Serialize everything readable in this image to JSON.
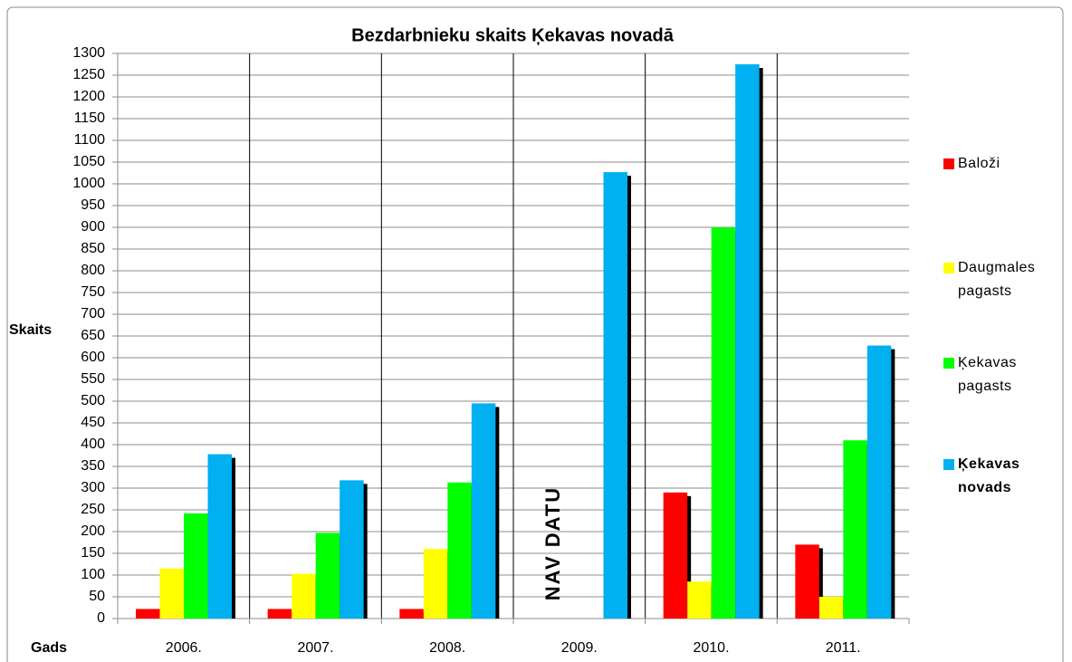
{
  "chart_data": {
    "type": "bar",
    "title": "Bezdarbnieku skaits Ķekavas novadā",
    "ylabel": "Skaits",
    "xlabel": "Gads",
    "annotation": "NAV DATU",
    "categories": [
      "2006.",
      "2007.",
      "2008.",
      "2009.",
      "2010.",
      "2011."
    ],
    "series": [
      {
        "name": "Baloži",
        "color": "#ff0000",
        "values": [
          22,
          22,
          22,
          null,
          290,
          170
        ]
      },
      {
        "name": "Daugmales pagasts",
        "color": "#ffff00",
        "values": [
          115,
          103,
          160,
          null,
          85,
          50
        ]
      },
      {
        "name": "Ķekavas pagasts",
        "color": "#00ff00",
        "values": [
          242,
          197,
          313,
          null,
          900,
          410
        ]
      },
      {
        "name": "Ķekavas novads",
        "color": "#00b0f0",
        "values": [
          378,
          318,
          495,
          1027,
          1275,
          628
        ]
      }
    ],
    "ylim": [
      0,
      1300
    ],
    "yticks": [
      0,
      50,
      100,
      150,
      200,
      250,
      300,
      350,
      400,
      450,
      500,
      550,
      600,
      650,
      700,
      750,
      800,
      850,
      900,
      950,
      1000,
      1050,
      1100,
      1150,
      1200,
      1250,
      1300
    ],
    "grid": true
  }
}
